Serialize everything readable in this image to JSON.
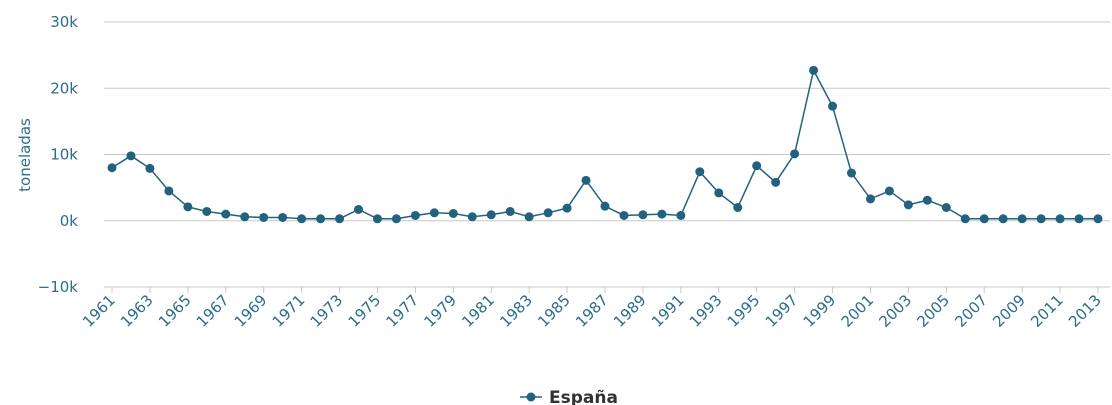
{
  "chart_data": {
    "type": "line",
    "y_label": "toneladas",
    "x": [
      1961,
      1962,
      1963,
      1964,
      1965,
      1966,
      1967,
      1968,
      1969,
      1970,
      1971,
      1972,
      1973,
      1974,
      1975,
      1976,
      1977,
      1978,
      1979,
      1980,
      1981,
      1982,
      1983,
      1984,
      1985,
      1986,
      1987,
      1988,
      1989,
      1990,
      1991,
      1992,
      1993,
      1994,
      1995,
      1996,
      1997,
      1998,
      1999,
      2000,
      2001,
      2002,
      2003,
      2004,
      2005,
      2006,
      2007,
      2008,
      2009,
      2010,
      2011,
      2012,
      2013
    ],
    "series": [
      {
        "name": "España",
        "color": "#22627f",
        "values": [
          8000,
          9800,
          7900,
          4500,
          2100,
          1400,
          1000,
          600,
          500,
          500,
          300,
          300,
          300,
          1700,
          300,
          300,
          800,
          1200,
          1100,
          600,
          900,
          1400,
          600,
          1200,
          1900,
          6100,
          2200,
          800,
          900,
          1000,
          800,
          7400,
          4200,
          2000,
          8300,
          5800,
          10100,
          22700,
          17300,
          7200,
          3300,
          4500,
          2400,
          3100,
          2000,
          300,
          300,
          300,
          300,
          300,
          300,
          300,
          300
        ]
      }
    ],
    "xlim": [
      1961,
      2013
    ],
    "xticks": [
      1961,
      1963,
      1965,
      1967,
      1969,
      1971,
      1973,
      1975,
      1977,
      1979,
      1981,
      1983,
      1985,
      1987,
      1989,
      1991,
      1993,
      1995,
      1997,
      1999,
      2001,
      2003,
      2005,
      2007,
      2009,
      2011,
      2013
    ],
    "ylim": [
      -10000,
      30000
    ],
    "yticks": [
      {
        "value": -10000,
        "label": "−10k"
      },
      {
        "value": 0,
        "label": "0k"
      },
      {
        "value": 10000,
        "label": "10k"
      },
      {
        "value": 20000,
        "label": "20k"
      },
      {
        "value": 30000,
        "label": "30k"
      }
    ],
    "grid": true
  }
}
